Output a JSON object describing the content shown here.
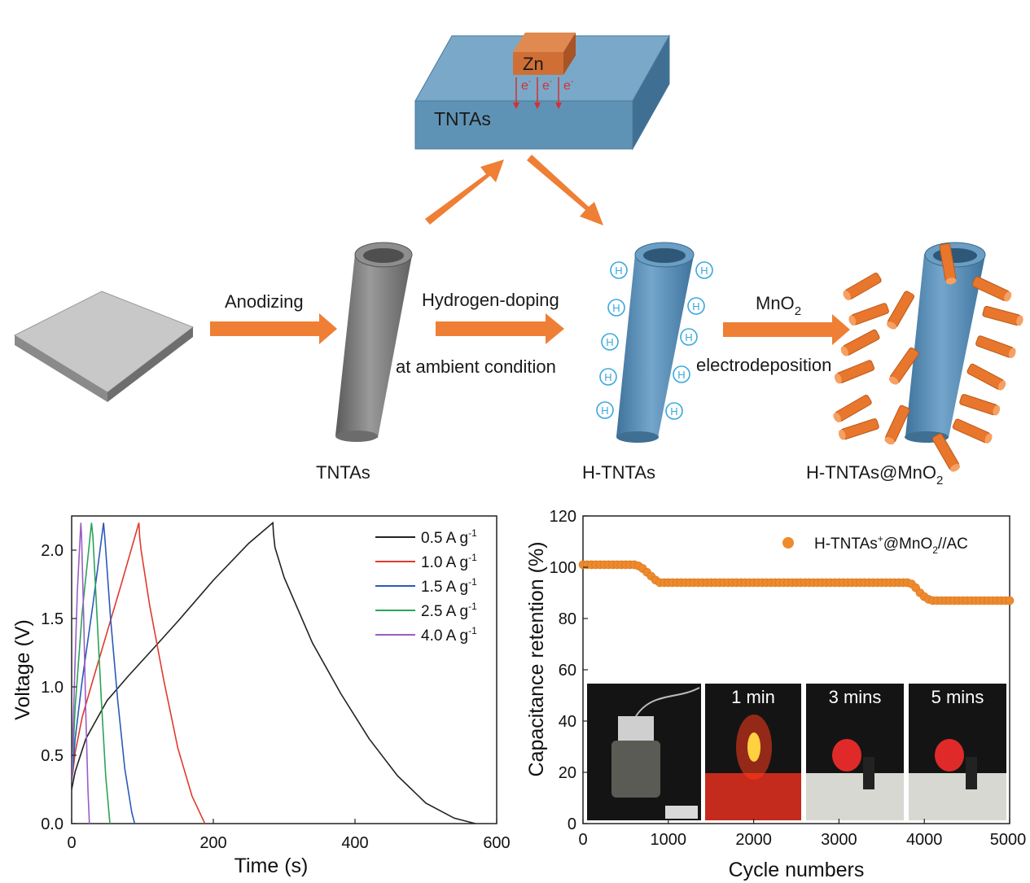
{
  "schematic": {
    "box_label": "TNTAs",
    "zn_label": "Zn",
    "electron_label": "e",
    "electron_charge": "-",
    "step1_label": "Anodizing",
    "step2_label_top": "Hydrogen-doping",
    "step2_label_bottom": "at ambient condition",
    "step3_label_top_main": "MnO",
    "step3_label_top_sub": "2",
    "step3_label_bottom": "electrodeposition",
    "tube1_caption": "TNTAs",
    "tube2_caption": "H-TNTAs",
    "tube3_caption_main": "H-TNTAs@MnO",
    "tube3_caption_sub": "2",
    "h_symbol": "H",
    "colors": {
      "box": "#5f93b6",
      "zn": "#cf6f36",
      "arrow": "#ee7f35",
      "gray_tube": "#7c7c7c",
      "blue_tube": "#5a8fb7",
      "h_circle": "#3aa8df",
      "mno2": "#e8762c"
    }
  },
  "chart_data": [
    {
      "type": "line",
      "title": "",
      "xlabel": "Time (s)",
      "ylabel": "Voltage (V)",
      "xlim": [
        0,
        600
      ],
      "ylim": [
        0,
        2.25
      ],
      "xticks": [
        "0",
        "200",
        "400",
        "600"
      ],
      "yticks": [
        "0.0",
        "0.5",
        "1.0",
        "1.5",
        "2.0"
      ],
      "legend_position": "top-right",
      "legend_unit_main": "A g",
      "legend_unit_sup": "-1",
      "series": [
        {
          "name": "0.5",
          "color": "#222222",
          "x": [
            0,
            5,
            20,
            50,
            80,
            110,
            150,
            200,
            250,
            284,
            285,
            287,
            300,
            340,
            380,
            420,
            460,
            500,
            540,
            570
          ],
          "y": [
            0.25,
            0.38,
            0.62,
            0.9,
            1.08,
            1.25,
            1.48,
            1.78,
            2.05,
            2.2,
            2.12,
            2.02,
            1.8,
            1.32,
            0.95,
            0.62,
            0.35,
            0.15,
            0.04,
            0.0
          ]
        },
        {
          "name": "1.0",
          "color": "#e03a2e",
          "x": [
            0,
            5,
            15,
            30,
            50,
            70,
            95,
            96,
            98,
            110,
            130,
            150,
            170,
            188
          ],
          "y": [
            0.3,
            0.52,
            0.78,
            1.05,
            1.4,
            1.75,
            2.2,
            2.1,
            2.0,
            1.6,
            1.05,
            0.55,
            0.2,
            0.0
          ]
        },
        {
          "name": "1.5",
          "color": "#2a5ab8",
          "x": [
            0,
            5,
            15,
            30,
            45,
            47,
            55,
            65,
            75,
            85,
            89
          ],
          "y": [
            0.3,
            0.62,
            1.05,
            1.6,
            2.2,
            2.08,
            1.5,
            0.9,
            0.4,
            0.08,
            0.0
          ]
        },
        {
          "name": "2.5",
          "color": "#2aa35a",
          "x": [
            0,
            5,
            15,
            28,
            30,
            36,
            42,
            48,
            54
          ],
          "y": [
            0.3,
            0.85,
            1.55,
            2.2,
            2.1,
            1.5,
            0.9,
            0.35,
            0.0
          ]
        },
        {
          "name": "4.0",
          "color": "#9a5cc6",
          "x": [
            0,
            4,
            8,
            13,
            14,
            17,
            20,
            23,
            25
          ],
          "y": [
            0.3,
            1.05,
            1.7,
            2.2,
            2.1,
            1.5,
            0.8,
            0.25,
            0.0
          ]
        }
      ]
    },
    {
      "type": "scatter",
      "title": "",
      "xlabel": "Cycle numbers",
      "ylabel": "Capacitance retention (%)",
      "xlim": [
        0,
        5000
      ],
      "ylim": [
        0,
        120
      ],
      "xticks": [
        "0",
        "1000",
        "2000",
        "3000",
        "4000",
        "5000"
      ],
      "yticks": [
        "0",
        "20",
        "40",
        "60",
        "80",
        "100",
        "120"
      ],
      "legend_position": "top-right",
      "legend": {
        "part1": "H-TNTAs",
        "sup": "+",
        "part2": "@MnO",
        "sub": "2",
        "part3": "//AC"
      },
      "color": "#ee8a2e",
      "series": [
        {
          "x": [
            0,
            100,
            200,
            300,
            400,
            500,
            600,
            650,
            700,
            750,
            800,
            850,
            900,
            1000,
            1200,
            1500,
            1800,
            2100,
            2400,
            2700,
            3000,
            3300,
            3600,
            3800,
            3850,
            3900,
            3950,
            4000,
            4050,
            4100,
            4300,
            4500,
            4700,
            4900,
            5000
          ],
          "y": [
            101,
            101,
            101,
            101,
            101,
            101,
            101,
            100.5,
            99.5,
            98,
            96.5,
            95,
            94,
            94,
            94,
            94,
            94,
            94,
            94,
            94,
            94,
            94,
            94,
            94,
            93.5,
            92,
            90,
            88.5,
            87.5,
            87,
            87,
            87,
            87,
            87,
            87
          ]
        }
      ],
      "photo_captions": [
        "",
        "1 min",
        "3 mins",
        "5 mins"
      ]
    }
  ]
}
